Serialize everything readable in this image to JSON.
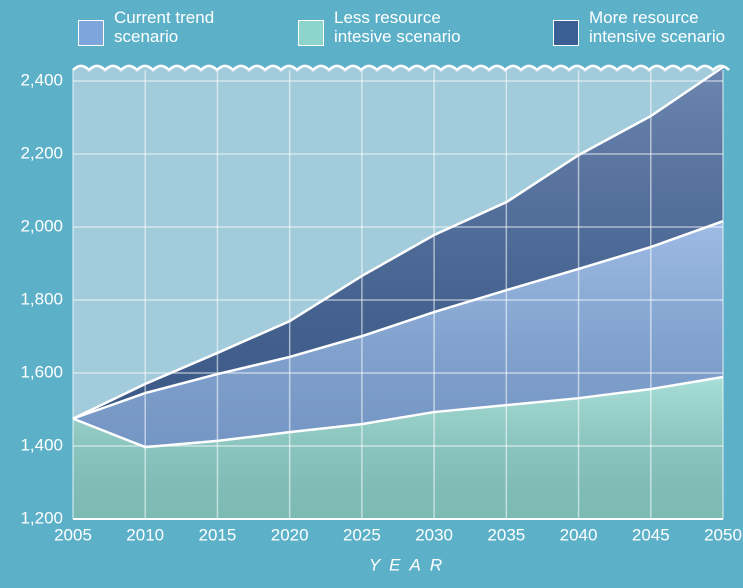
{
  "chart_data": {
    "type": "area",
    "x": [
      2005,
      2010,
      2015,
      2020,
      2025,
      2030,
      2035,
      2040,
      2045,
      2050
    ],
    "series": [
      {
        "name": "Current trend scenario",
        "color": "#7ea6dc",
        "values": [
          1475,
          1545,
          1597,
          1644,
          1701,
          1767,
          1827,
          1885,
          1945,
          2016
        ]
      },
      {
        "name": "Less resource intesive scenario",
        "color": "#8dd4cc",
        "values": [
          1475,
          1397,
          1414,
          1438,
          1460,
          1493,
          1512,
          1531,
          1556,
          1589
        ]
      },
      {
        "name": "More resource intensive scenario",
        "color": "#3b5e95",
        "values": [
          1475,
          1570,
          1655,
          1742,
          1866,
          1978,
          2068,
          2197,
          2304,
          2438
        ]
      }
    ],
    "xlabel": "YEAR",
    "xlim": [
      2005,
      2050
    ],
    "xticks": [
      2005,
      2010,
      2015,
      2020,
      2025,
      2030,
      2035,
      2040,
      2045,
      2050
    ],
    "ylim": [
      1200,
      2400
    ],
    "yticks": [
      {
        "value": 1200,
        "label": "1,200"
      },
      {
        "value": 1400,
        "label": "1,400"
      },
      {
        "value": 1600,
        "label": "1,600"
      },
      {
        "value": 1800,
        "label": "1,800"
      },
      {
        "value": 2000,
        "label": "2,000"
      },
      {
        "value": 2200,
        "label": "2,200"
      },
      {
        "value": 2400,
        "label": "2,400"
      }
    ],
    "grid": true
  }
}
